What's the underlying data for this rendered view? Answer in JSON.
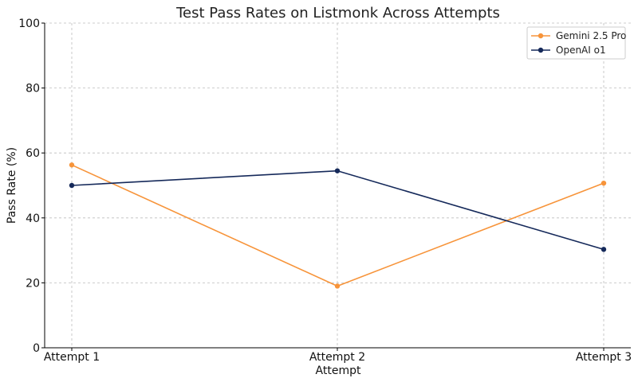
{
  "chart_data": {
    "type": "line",
    "title": "Test Pass Rates on Listmonk Across Attempts",
    "xlabel": "Attempt",
    "ylabel": "Pass Rate (%)",
    "categories": [
      "Attempt 1",
      "Attempt 2",
      "Attempt 3"
    ],
    "ylim": [
      0,
      100
    ],
    "yticks": [
      0,
      20,
      40,
      60,
      80,
      100
    ],
    "grid": true,
    "legend_position": "top-right",
    "series": [
      {
        "name": "Gemini 2.5 Pro",
        "color": "#f7943a",
        "values": [
          56.3,
          19.0,
          50.7
        ]
      },
      {
        "name": "OpenAI o1",
        "color": "#15295a",
        "values": [
          50.0,
          54.5,
          30.3
        ]
      }
    ]
  }
}
